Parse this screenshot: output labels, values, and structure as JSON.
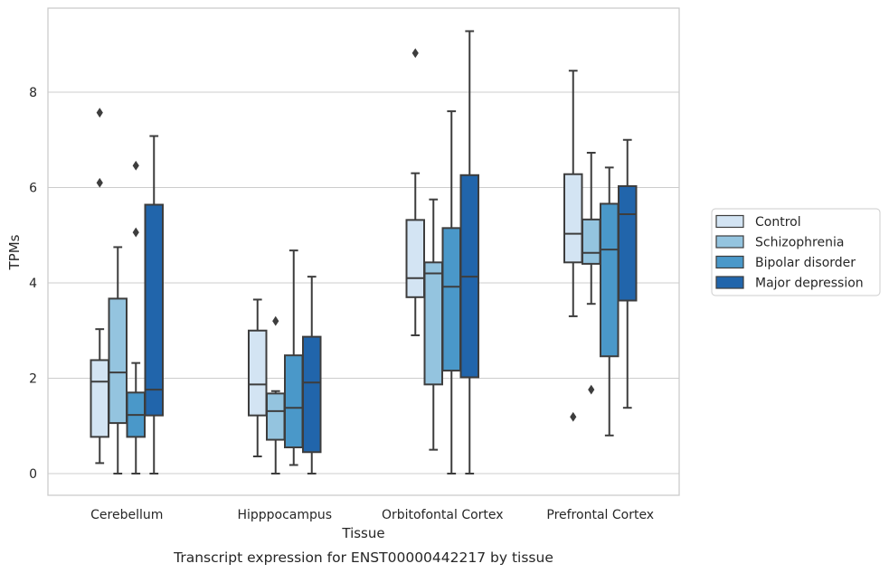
{
  "chart_data": {
    "type": "box",
    "caption": "Transcript expression for ENST00000442217 by tissue",
    "xlabel": "Tissue",
    "ylabel": "TPMs",
    "ylim": [
      -0.45,
      9.7
    ],
    "yticks": [
      0,
      2,
      4,
      6,
      8
    ],
    "grid": "horizontal",
    "legend_position": "right",
    "categories": [
      "Cerebellum",
      "Hipppocampus",
      "Orbitofontal Cortex",
      "Prefrontal Cortex"
    ],
    "series": [
      {
        "name": "Control",
        "color": "#d3e4f3",
        "boxes": [
          {
            "whislo": 0.22,
            "q1": 0.77,
            "med": 1.93,
            "q3": 2.38,
            "whishi": 3.03,
            "fliers": [
              6.1,
              7.57
            ]
          },
          {
            "whislo": 0.36,
            "q1": 1.22,
            "med": 1.87,
            "q3": 3.0,
            "whishi": 3.65,
            "fliers": []
          },
          {
            "whislo": 2.9,
            "q1": 3.7,
            "med": 4.1,
            "q3": 5.32,
            "whishi": 6.3,
            "fliers": [
              8.82
            ]
          },
          {
            "whislo": 3.3,
            "q1": 4.43,
            "med": 5.03,
            "q3": 6.28,
            "whishi": 8.45,
            "fliers": [
              1.19
            ]
          }
        ]
      },
      {
        "name": "Schizophrenia",
        "color": "#94c4df",
        "boxes": [
          {
            "whislo": 0.0,
            "q1": 1.06,
            "med": 2.12,
            "q3": 3.67,
            "whishi": 4.75,
            "fliers": []
          },
          {
            "whislo": 0.0,
            "q1": 0.71,
            "med": 1.31,
            "q3": 1.68,
            "whishi": 1.73,
            "fliers": [
              3.2
            ]
          },
          {
            "whislo": 0.5,
            "q1": 1.87,
            "med": 4.2,
            "q3": 4.43,
            "whishi": 5.75,
            "fliers": []
          },
          {
            "whislo": 3.56,
            "q1": 4.4,
            "med": 4.63,
            "q3": 5.33,
            "whishi": 6.73,
            "fliers": [
              1.76
            ]
          }
        ]
      },
      {
        "name": "Bipolar disorder",
        "color": "#4a98c9",
        "boxes": [
          {
            "whislo": 0.0,
            "q1": 0.77,
            "med": 1.23,
            "q3": 1.7,
            "whishi": 2.32,
            "fliers": [
              5.06,
              6.46
            ]
          },
          {
            "whislo": 0.18,
            "q1": 0.55,
            "med": 1.38,
            "q3": 2.48,
            "whishi": 4.68,
            "fliers": []
          },
          {
            "whislo": 0.0,
            "q1": 2.16,
            "med": 3.92,
            "q3": 5.15,
            "whishi": 7.6,
            "fliers": []
          },
          {
            "whislo": 0.8,
            "q1": 2.46,
            "med": 4.7,
            "q3": 5.66,
            "whishi": 6.42,
            "fliers": []
          }
        ]
      },
      {
        "name": "Major depression",
        "color": "#2165ab",
        "boxes": [
          {
            "whislo": 0.0,
            "q1": 1.22,
            "med": 1.76,
            "q3": 5.64,
            "whishi": 7.08,
            "fliers": []
          },
          {
            "whislo": 0.0,
            "q1": 0.45,
            "med": 1.91,
            "q3": 2.87,
            "whishi": 4.13,
            "fliers": []
          },
          {
            "whislo": 0.0,
            "q1": 2.02,
            "med": 4.13,
            "q3": 6.26,
            "whishi": 9.28,
            "fliers": []
          },
          {
            "whislo": 1.38,
            "q1": 3.63,
            "med": 5.44,
            "q3": 6.03,
            "whishi": 7.0,
            "fliers": []
          }
        ]
      }
    ]
  }
}
